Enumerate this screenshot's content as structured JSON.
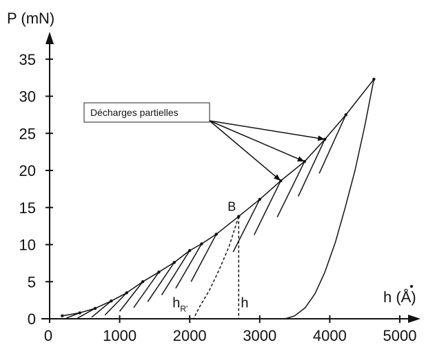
{
  "chart_data": {
    "type": "line",
    "title": "",
    "xlabel": "h (Å)",
    "ylabel": "P (mN)",
    "xlim": [
      0,
      5000
    ],
    "ylim": [
      0,
      36
    ],
    "x_ticks": [
      0,
      1000,
      2000,
      3000,
      4000,
      5000
    ],
    "y_ticks": [
      0,
      5,
      10,
      15,
      20,
      25,
      30,
      35
    ],
    "grid": false,
    "series": [
      {
        "role": "loading",
        "x": [
          180,
          430,
          650,
          880,
          1100,
          1330,
          1560,
          1780,
          2000,
          2170,
          2380,
          2700,
          3000,
          3300,
          3640,
          3930,
          4230,
          4630
        ],
        "y": [
          0.4,
          0.8,
          1.4,
          2.4,
          3.5,
          5.0,
          6.3,
          7.6,
          9.2,
          10.1,
          11.4,
          13.8,
          16.1,
          18.6,
          21.2,
          24.2,
          27.5,
          32.3
        ]
      },
      {
        "role": "unloading-segments",
        "segments": [
          {
            "x": [
              430,
              240
            ],
            "y": [
              0.8,
              0.1
            ]
          },
          {
            "x": [
              650,
              400
            ],
            "y": [
              1.4,
              0.1
            ]
          },
          {
            "x": [
              880,
              600
            ],
            "y": [
              2.4,
              0.2
            ]
          },
          {
            "x": [
              1100,
              790
            ],
            "y": [
              3.5,
              0.5
            ]
          },
          {
            "x": [
              1330,
              1000
            ],
            "y": [
              5.0,
              1.0
            ]
          },
          {
            "x": [
              1560,
              1200
            ],
            "y": [
              6.3,
              1.5
            ]
          },
          {
            "x": [
              1780,
              1400
            ],
            "y": [
              7.6,
              2.3
            ]
          },
          {
            "x": [
              2000,
              1600
            ],
            "y": [
              9.2,
              3.2
            ]
          },
          {
            "x": [
              2170,
              1800
            ],
            "y": [
              10.1,
              4.1
            ]
          },
          {
            "x": [
              2380,
              2020
            ],
            "y": [
              11.4,
              5.0
            ]
          },
          {
            "x": [
              3000,
              2620
            ],
            "y": [
              16.1,
              9.0
            ]
          },
          {
            "x": [
              3300,
              2920
            ],
            "y": [
              18.6,
              11.3
            ]
          },
          {
            "x": [
              3640,
              3250
            ],
            "y": [
              21.2,
              13.7
            ]
          },
          {
            "x": [
              3930,
              3550
            ],
            "y": [
              24.2,
              16.5
            ]
          },
          {
            "x": [
              4230,
              3850
            ],
            "y": [
              27.5,
              19.6
            ]
          }
        ]
      },
      {
        "role": "unloading-dashed",
        "x": [
          2700,
          2560,
          2420,
          2280,
          2140,
          2060
        ],
        "y": [
          13.8,
          9.7,
          6.6,
          3.8,
          1.6,
          0.1
        ]
      },
      {
        "role": "unloading-final",
        "x": [
          4630,
          4500,
          4360,
          4220,
          4080,
          3930,
          3790,
          3650,
          3500,
          3380,
          3280
        ],
        "y": [
          32.3,
          26.0,
          20.0,
          15.0,
          10.3,
          6.3,
          3.4,
          1.5,
          0.4,
          0.05,
          0
        ]
      },
      {
        "role": "h-dropline",
        "x": [
          2700,
          2700
        ],
        "y": [
          13.8,
          0
        ]
      }
    ],
    "annotations": [
      {
        "text": "Décharges partielles",
        "points": [
          {
            "x": 3930,
            "y": 24.2
          },
          {
            "x": 3640,
            "y": 21.2
          },
          {
            "x": 3300,
            "y": 18.6
          }
        ]
      },
      {
        "text": "B",
        "x": 2680,
        "y": 14.2
      },
      {
        "text": "h",
        "x": 2700,
        "y": 0.4
      },
      {
        "text": "h",
        "sub": "R'",
        "x": 2050,
        "y": 0.4
      }
    ]
  }
}
